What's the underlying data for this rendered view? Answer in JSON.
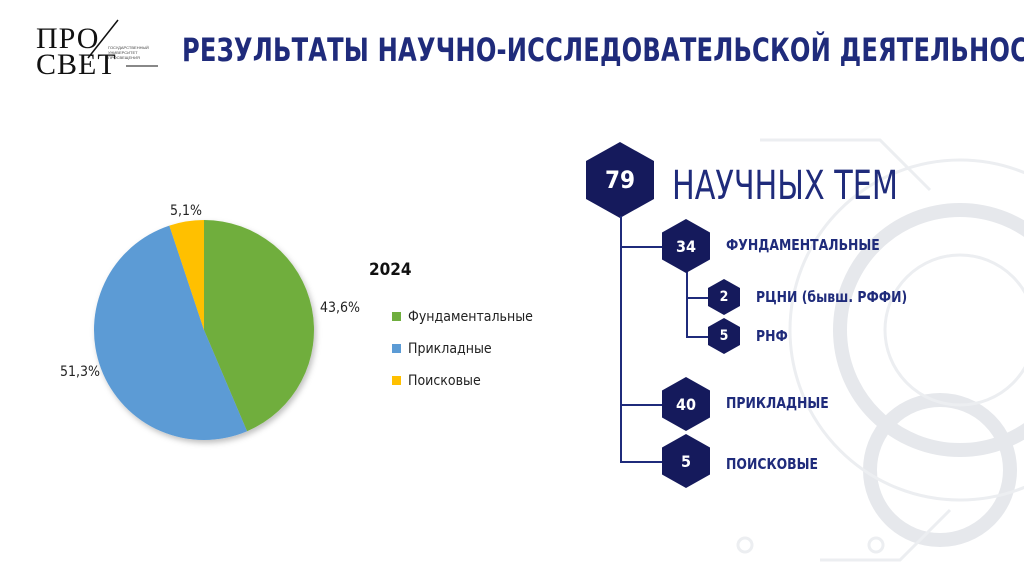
{
  "brand": {
    "logo_line1": "ПРО",
    "logo_line2": "СВЕТ",
    "logo_small_text": "ГОСУДАРСТВЕННЫЙ УНИВЕРСИТЕТ ПРОСВЕЩЕНИЯ"
  },
  "page": {
    "title": "РЕЗУЛЬТАТЫ НАУЧНО-ИССЛЕДОВАТЕЛЬСКОЙ ДЕЯТЕЛЬНОСТИ"
  },
  "chart_data": {
    "type": "pie",
    "title": "2024",
    "slices": [
      {
        "name": "Фундаментальные",
        "value": 43.6,
        "label": "43,6%",
        "color": "#6fae3e"
      },
      {
        "name": "Прикладные",
        "value": 51.3,
        "label": "51,3%",
        "color": "#5b9bd5"
      },
      {
        "name": "Поисковые",
        "value": 5.1,
        "label": "5,1%",
        "color": "#ffc000"
      }
    ],
    "legend_position": "right"
  },
  "topics": {
    "total": "79",
    "total_label": "НАУЧНЫХ ТЕМ",
    "items": [
      {
        "count": "34",
        "label": "ФУНДАМЕНТАЛЬНЫЕ"
      },
      {
        "count": "40",
        "label": "ПРИКЛАДНЫЕ"
      },
      {
        "count": "5",
        "label": "ПОИСКОВЫЕ"
      }
    ],
    "sub_items": [
      {
        "count": "2",
        "label": "РЦНИ (бывш. РФФИ)"
      },
      {
        "count": "5",
        "label": "РНФ"
      }
    ]
  },
  "colors": {
    "navy": "#151a5c",
    "title_blue": "#1f2b7b"
  }
}
